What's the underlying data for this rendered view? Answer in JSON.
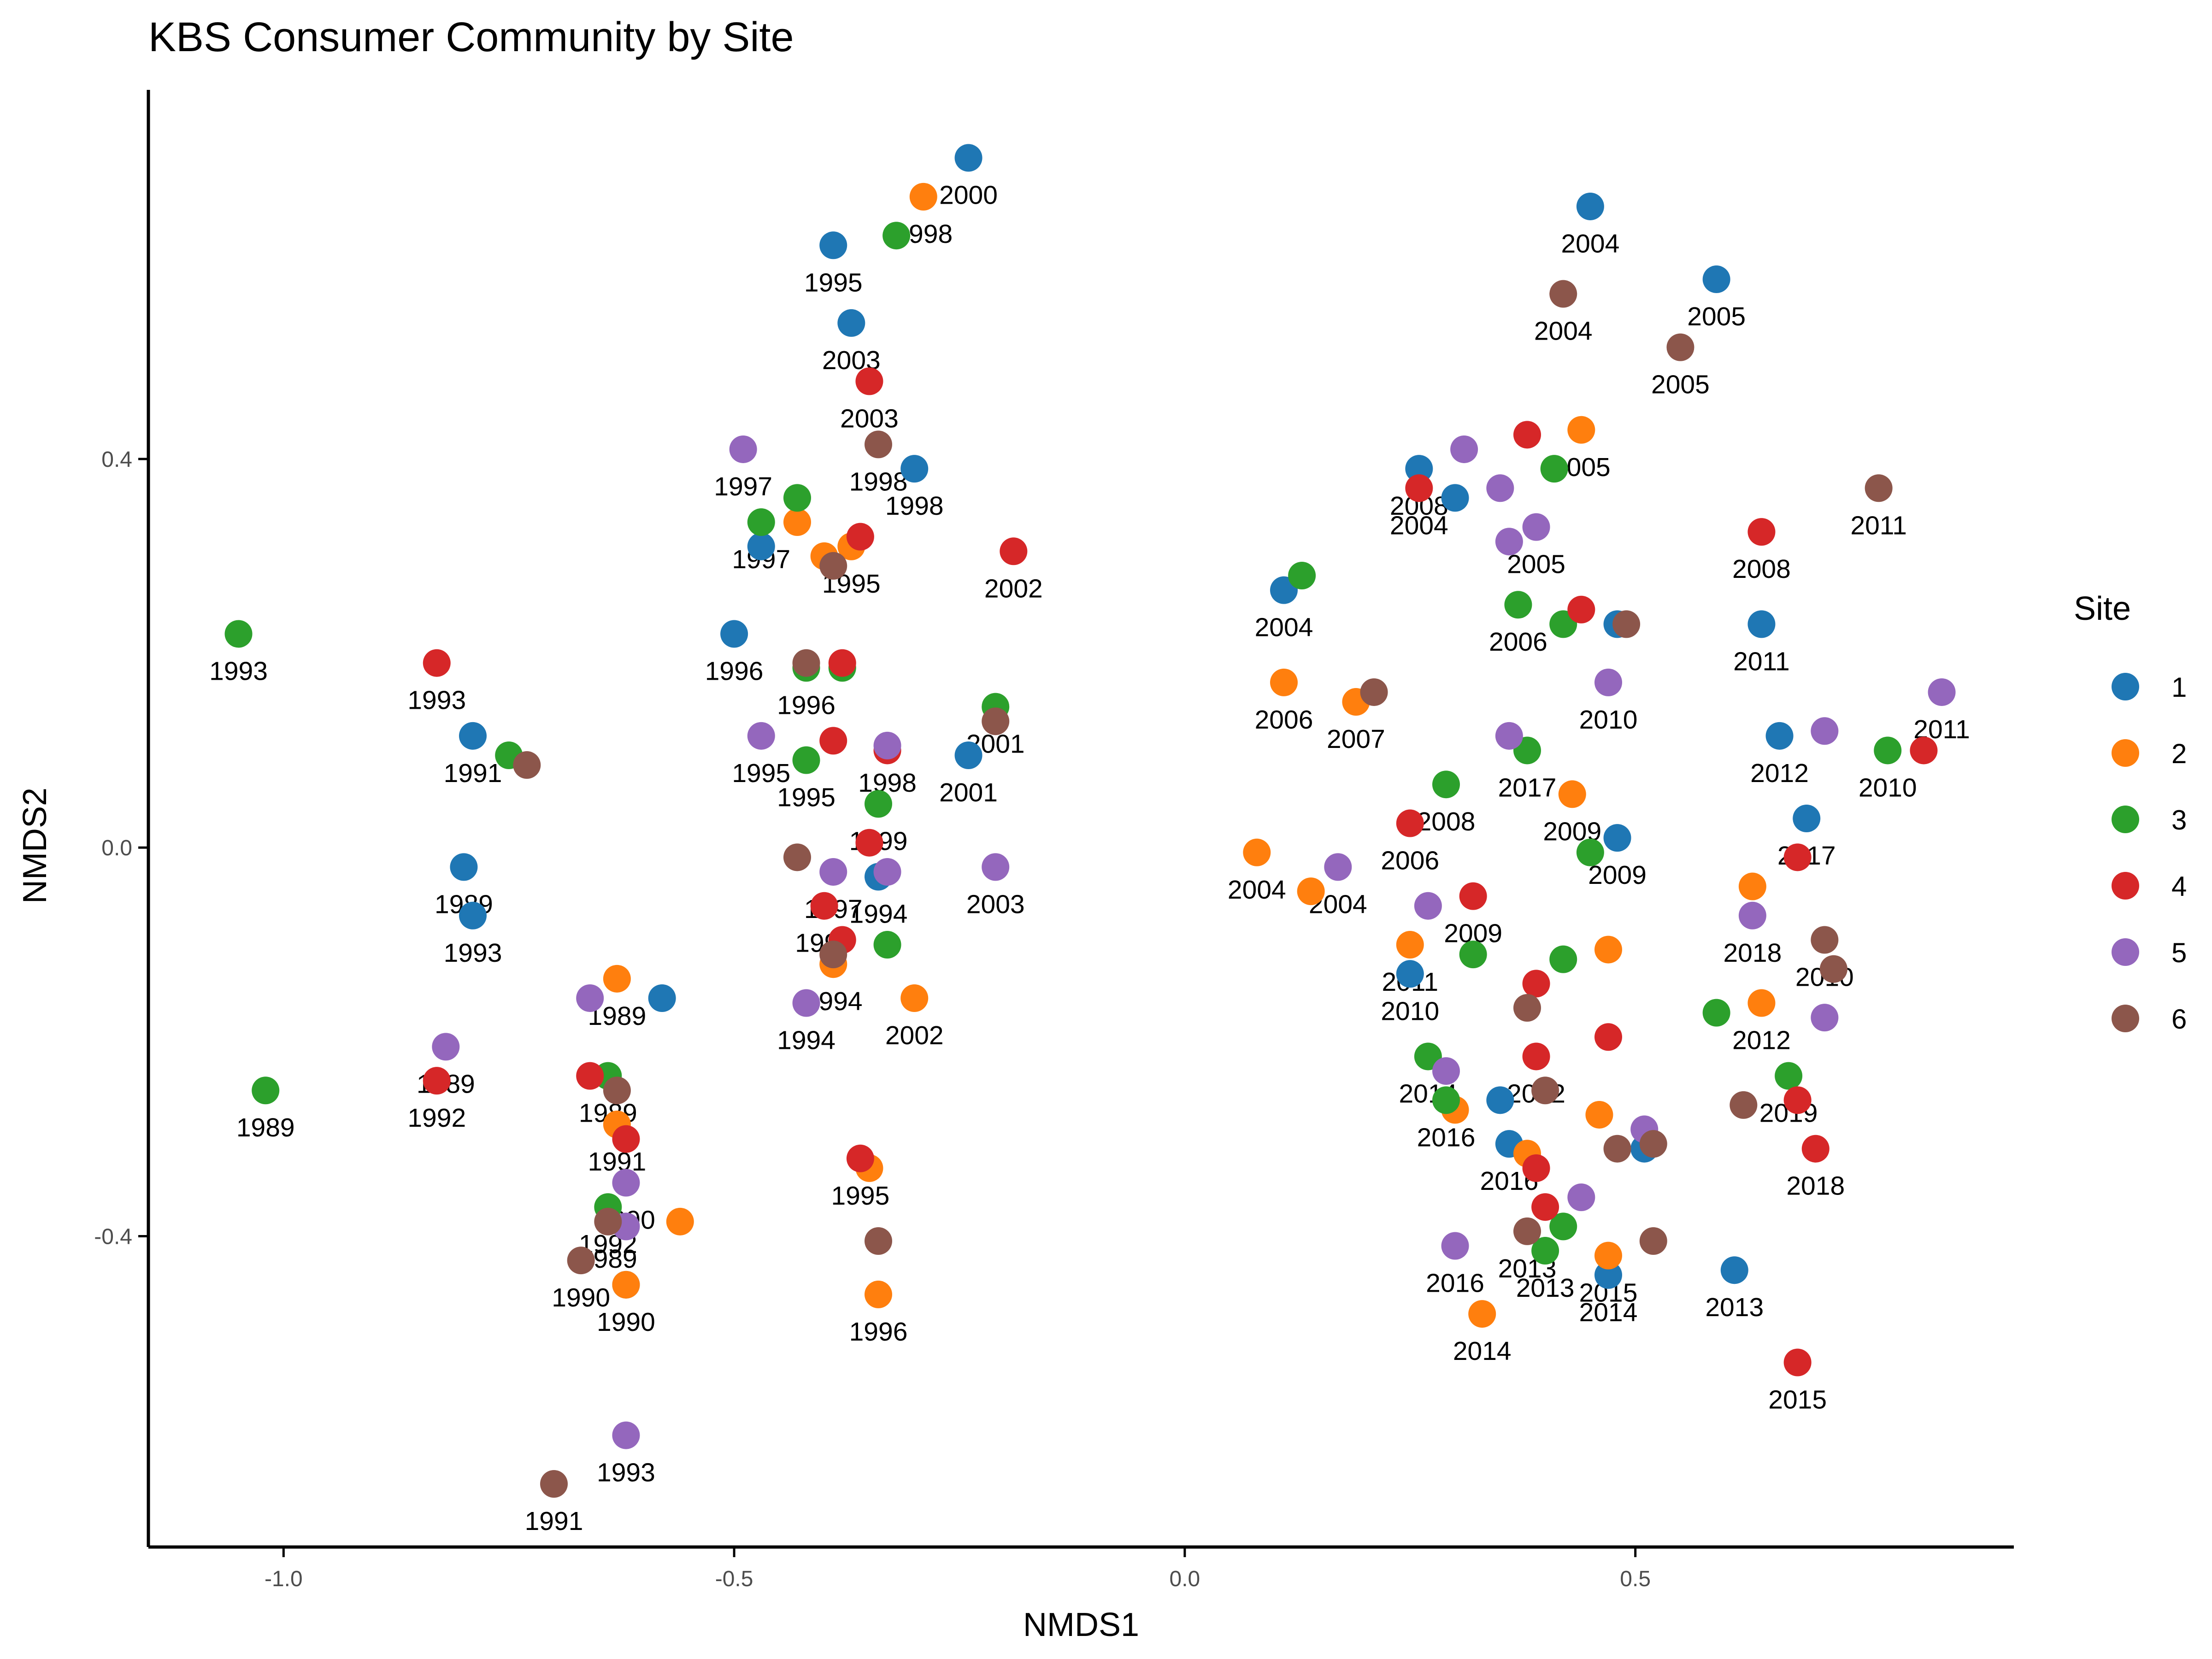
{
  "chart_data": {
    "type": "scatter",
    "title": "KBS Consumer Community by Site",
    "xlabel": "NMDS1",
    "ylabel": "NMDS2",
    "xlim": [
      -1.15,
      0.92
    ],
    "ylim": [
      -0.72,
      0.78
    ],
    "xticks": [
      -1.0,
      -0.5,
      0.0,
      0.5
    ],
    "xtick_labels": [
      "-1.0",
      "-0.5",
      "0.0",
      "0.5"
    ],
    "yticks": [
      -0.4,
      0.0,
      0.4
    ],
    "ytick_labels": [
      "-0.4",
      "0.0",
      "0.4"
    ],
    "grid": false,
    "legend": {
      "title": "Site",
      "placement": "right",
      "entries": [
        {
          "label": "1",
          "color": "#1f77b4"
        },
        {
          "label": "2",
          "color": "#ff7f0e"
        },
        {
          "label": "3",
          "color": "#2ca02c"
        },
        {
          "label": "4",
          "color": "#d62728"
        },
        {
          "label": "5",
          "color": "#9467bd"
        },
        {
          "label": "6",
          "color": "#8c564b"
        }
      ]
    },
    "series": [
      {
        "name": "1",
        "color": "#1f77b4",
        "points": [
          {
            "x": -0.24,
            "y": 0.71,
            "label": "2000"
          },
          {
            "x": -0.39,
            "y": 0.62,
            "label": "1995"
          },
          {
            "x": -0.37,
            "y": 0.54,
            "label": "2003"
          },
          {
            "x": -0.3,
            "y": 0.39,
            "label": "1998"
          },
          {
            "x": -0.47,
            "y": 0.31,
            "label": ""
          },
          {
            "x": -0.5,
            "y": 0.22,
            "label": "1996"
          },
          {
            "x": -0.24,
            "y": 0.095,
            "label": "2001"
          },
          {
            "x": -0.79,
            "y": 0.115,
            "label": "1991"
          },
          {
            "x": -0.8,
            "y": -0.02,
            "label": "1989"
          },
          {
            "x": -0.79,
            "y": -0.07,
            "label": "1993"
          },
          {
            "x": -0.58,
            "y": -0.155,
            "label": ""
          },
          {
            "x": -0.34,
            "y": -0.03,
            "label": "1994"
          },
          {
            "x": -0.62,
            "y": -0.45,
            "label": "1990"
          },
          {
            "x": 0.45,
            "y": 0.66,
            "label": "2004"
          },
          {
            "x": 0.59,
            "y": 0.585,
            "label": "2005"
          },
          {
            "x": 0.26,
            "y": 0.39,
            "label": "2008"
          },
          {
            "x": 0.3,
            "y": 0.36,
            "label": ""
          },
          {
            "x": 0.11,
            "y": 0.265,
            "label": "2004"
          },
          {
            "x": 0.48,
            "y": 0.23,
            "label": ""
          },
          {
            "x": 0.64,
            "y": 0.23,
            "label": "2011"
          },
          {
            "x": 0.66,
            "y": 0.115,
            "label": "2012"
          },
          {
            "x": 0.69,
            "y": 0.03,
            "label": "2017"
          },
          {
            "x": 0.48,
            "y": 0.01,
            "label": "2009"
          },
          {
            "x": 0.25,
            "y": -0.13,
            "label": "2010"
          },
          {
            "x": 0.35,
            "y": -0.26,
            "label": ""
          },
          {
            "x": 0.36,
            "y": -0.305,
            "label": "2016"
          },
          {
            "x": 0.51,
            "y": -0.31,
            "label": ""
          },
          {
            "x": 0.47,
            "y": -0.44,
            "label": "2014"
          },
          {
            "x": 0.61,
            "y": -0.435,
            "label": "2013"
          }
        ]
      },
      {
        "name": "2",
        "color": "#ff7f0e",
        "points": [
          {
            "x": -0.29,
            "y": 0.67,
            "label": "1998"
          },
          {
            "x": -0.43,
            "y": 0.335,
            "label": ""
          },
          {
            "x": -0.37,
            "y": 0.31,
            "label": "1995"
          },
          {
            "x": -0.4,
            "y": 0.3,
            "label": ""
          },
          {
            "x": -0.63,
            "y": -0.135,
            "label": "1989"
          },
          {
            "x": -0.63,
            "y": -0.285,
            "label": "1991"
          },
          {
            "x": -0.39,
            "y": -0.12,
            "label": "1994"
          },
          {
            "x": -0.3,
            "y": -0.155,
            "label": "2002"
          },
          {
            "x": -0.35,
            "y": -0.33,
            "label": ""
          },
          {
            "x": -0.56,
            "y": -0.385,
            "label": ""
          },
          {
            "x": -0.62,
            "y": -0.45,
            "label": ""
          },
          {
            "x": -0.34,
            "y": -0.46,
            "label": "1996"
          },
          {
            "x": 0.44,
            "y": 0.43,
            "label": "2005"
          },
          {
            "x": 0.11,
            "y": 0.17,
            "label": "2006"
          },
          {
            "x": 0.19,
            "y": 0.15,
            "label": "2007"
          },
          {
            "x": 0.43,
            "y": 0.055,
            "label": "2009"
          },
          {
            "x": 0.08,
            "y": -0.005,
            "label": "2004"
          },
          {
            "x": 0.14,
            "y": -0.045,
            "label": ""
          },
          {
            "x": 0.25,
            "y": -0.1,
            "label": "2011"
          },
          {
            "x": 0.47,
            "y": -0.105,
            "label": ""
          },
          {
            "x": 0.63,
            "y": -0.04,
            "label": ""
          },
          {
            "x": 0.64,
            "y": -0.16,
            "label": "2012"
          },
          {
            "x": 0.3,
            "y": -0.27,
            "label": ""
          },
          {
            "x": 0.38,
            "y": -0.315,
            "label": ""
          },
          {
            "x": 0.46,
            "y": -0.275,
            "label": ""
          },
          {
            "x": 0.47,
            "y": -0.42,
            "label": "2015"
          },
          {
            "x": 0.33,
            "y": -0.48,
            "label": "2014"
          }
        ]
      },
      {
        "name": "3",
        "color": "#2ca02c",
        "points": [
          {
            "x": -0.32,
            "y": 0.63,
            "label": ""
          },
          {
            "x": -0.43,
            "y": 0.36,
            "label": ""
          },
          {
            "x": -0.47,
            "y": 0.335,
            "label": "1997"
          },
          {
            "x": -0.42,
            "y": 0.185,
            "label": "1996"
          },
          {
            "x": -0.38,
            "y": 0.185,
            "label": ""
          },
          {
            "x": -0.21,
            "y": 0.145,
            "label": "2001"
          },
          {
            "x": -0.42,
            "y": 0.09,
            "label": "1995"
          },
          {
            "x": -0.34,
            "y": 0.045,
            "label": "1999"
          },
          {
            "x": -0.33,
            "y": -0.1,
            "label": ""
          },
          {
            "x": -1.05,
            "y": 0.22,
            "label": "1993"
          },
          {
            "x": -0.75,
            "y": 0.095,
            "label": ""
          },
          {
            "x": -1.02,
            "y": -0.25,
            "label": "1989"
          },
          {
            "x": -0.64,
            "y": -0.235,
            "label": "1989"
          },
          {
            "x": -0.64,
            "y": -0.37,
            "label": "1992"
          },
          {
            "x": 0.13,
            "y": 0.28,
            "label": ""
          },
          {
            "x": 0.41,
            "y": 0.39,
            "label": ""
          },
          {
            "x": 0.37,
            "y": 0.25,
            "label": "2006"
          },
          {
            "x": 0.42,
            "y": 0.23,
            "label": ""
          },
          {
            "x": 0.29,
            "y": 0.065,
            "label": "2008"
          },
          {
            "x": 0.38,
            "y": 0.1,
            "label": "2017"
          },
          {
            "x": 0.45,
            "y": -0.005,
            "label": ""
          },
          {
            "x": 0.78,
            "y": 0.1,
            "label": "2010"
          },
          {
            "x": 0.32,
            "y": -0.11,
            "label": ""
          },
          {
            "x": 0.42,
            "y": -0.115,
            "label": ""
          },
          {
            "x": 0.27,
            "y": -0.215,
            "label": "2014"
          },
          {
            "x": 0.29,
            "y": -0.26,
            "label": "2016"
          },
          {
            "x": 0.59,
            "y": -0.17,
            "label": ""
          },
          {
            "x": 0.67,
            "y": -0.235,
            "label": "2019"
          },
          {
            "x": 0.42,
            "y": -0.39,
            "label": ""
          },
          {
            "x": 0.4,
            "y": -0.415,
            "label": "2013"
          }
        ]
      },
      {
        "name": "4",
        "color": "#d62728",
        "points": [
          {
            "x": -0.35,
            "y": 0.48,
            "label": "2003"
          },
          {
            "x": -0.36,
            "y": 0.32,
            "label": ""
          },
          {
            "x": -0.19,
            "y": 0.305,
            "label": "2002"
          },
          {
            "x": -0.38,
            "y": 0.19,
            "label": ""
          },
          {
            "x": -0.39,
            "y": 0.11,
            "label": ""
          },
          {
            "x": -0.33,
            "y": 0.1,
            "label": ""
          },
          {
            "x": -0.35,
            "y": 0.005,
            "label": ""
          },
          {
            "x": -0.4,
            "y": -0.06,
            "label": "1996"
          },
          {
            "x": -0.38,
            "y": -0.095,
            "label": ""
          },
          {
            "x": -0.83,
            "y": 0.19,
            "label": "1993"
          },
          {
            "x": -0.83,
            "y": -0.24,
            "label": "1992"
          },
          {
            "x": -0.66,
            "y": -0.235,
            "label": ""
          },
          {
            "x": -0.62,
            "y": -0.3,
            "label": ""
          },
          {
            "x": -0.36,
            "y": -0.32,
            "label": "1995"
          },
          {
            "x": 0.38,
            "y": 0.425,
            "label": ""
          },
          {
            "x": 0.26,
            "y": 0.37,
            "label": "2004"
          },
          {
            "x": 0.44,
            "y": 0.245,
            "label": ""
          },
          {
            "x": 0.64,
            "y": 0.325,
            "label": "2008"
          },
          {
            "x": 0.82,
            "y": 0.1,
            "label": ""
          },
          {
            "x": 0.25,
            "y": 0.025,
            "label": "2006"
          },
          {
            "x": 0.32,
            "y": -0.05,
            "label": "2009"
          },
          {
            "x": 0.68,
            "y": -0.01,
            "label": ""
          },
          {
            "x": 0.39,
            "y": -0.14,
            "label": ""
          },
          {
            "x": 0.47,
            "y": -0.195,
            "label": ""
          },
          {
            "x": 0.39,
            "y": -0.215,
            "label": "2012"
          },
          {
            "x": 0.68,
            "y": -0.26,
            "label": ""
          },
          {
            "x": 0.7,
            "y": -0.31,
            "label": "2018"
          },
          {
            "x": 0.39,
            "y": -0.33,
            "label": ""
          },
          {
            "x": 0.4,
            "y": -0.37,
            "label": ""
          },
          {
            "x": 0.68,
            "y": -0.53,
            "label": "2015"
          }
        ]
      },
      {
        "name": "5",
        "color": "#9467bd",
        "points": [
          {
            "x": -0.49,
            "y": 0.41,
            "label": "1997"
          },
          {
            "x": -0.47,
            "y": 0.115,
            "label": "1995"
          },
          {
            "x": -0.33,
            "y": 0.105,
            "label": "1998"
          },
          {
            "x": -0.39,
            "y": -0.025,
            "label": "1997"
          },
          {
            "x": -0.33,
            "y": -0.025,
            "label": ""
          },
          {
            "x": -0.21,
            "y": -0.02,
            "label": "2003"
          },
          {
            "x": -0.42,
            "y": -0.16,
            "label": "1994"
          },
          {
            "x": -0.66,
            "y": -0.155,
            "label": ""
          },
          {
            "x": -0.82,
            "y": -0.205,
            "label": "1989"
          },
          {
            "x": -0.62,
            "y": -0.345,
            "label": "1990"
          },
          {
            "x": -0.62,
            "y": -0.39,
            "label": ""
          },
          {
            "x": -0.62,
            "y": -0.605,
            "label": "1993"
          },
          {
            "x": 0.31,
            "y": 0.41,
            "label": ""
          },
          {
            "x": 0.35,
            "y": 0.37,
            "label": ""
          },
          {
            "x": 0.39,
            "y": 0.33,
            "label": "2005"
          },
          {
            "x": 0.36,
            "y": 0.315,
            "label": ""
          },
          {
            "x": 0.47,
            "y": 0.17,
            "label": "2010"
          },
          {
            "x": 0.36,
            "y": 0.115,
            "label": ""
          },
          {
            "x": 0.84,
            "y": 0.16,
            "label": "2011"
          },
          {
            "x": 0.71,
            "y": 0.12,
            "label": ""
          },
          {
            "x": 0.17,
            "y": -0.02,
            "label": "2004"
          },
          {
            "x": 0.27,
            "y": -0.06,
            "label": ""
          },
          {
            "x": 0.63,
            "y": -0.07,
            "label": "2018"
          },
          {
            "x": 0.71,
            "y": -0.175,
            "label": ""
          },
          {
            "x": 0.29,
            "y": -0.23,
            "label": ""
          },
          {
            "x": 0.51,
            "y": -0.29,
            "label": ""
          },
          {
            "x": 0.44,
            "y": -0.36,
            "label": ""
          },
          {
            "x": 0.3,
            "y": -0.41,
            "label": "2016"
          }
        ]
      },
      {
        "name": "6",
        "color": "#8c564b",
        "points": [
          {
            "x": -0.34,
            "y": 0.415,
            "label": "1998"
          },
          {
            "x": -0.39,
            "y": 0.29,
            "label": ""
          },
          {
            "x": -0.42,
            "y": 0.19,
            "label": ""
          },
          {
            "x": -0.21,
            "y": 0.13,
            "label": ""
          },
          {
            "x": -0.43,
            "y": -0.01,
            "label": ""
          },
          {
            "x": -0.39,
            "y": -0.11,
            "label": ""
          },
          {
            "x": -0.73,
            "y": 0.085,
            "label": ""
          },
          {
            "x": -0.63,
            "y": -0.25,
            "label": ""
          },
          {
            "x": -0.64,
            "y": -0.385,
            "label": "1989"
          },
          {
            "x": -0.67,
            "y": -0.425,
            "label": "1990"
          },
          {
            "x": -0.34,
            "y": -0.405,
            "label": ""
          },
          {
            "x": -0.7,
            "y": -0.655,
            "label": "1991"
          },
          {
            "x": 0.42,
            "y": 0.57,
            "label": "2004"
          },
          {
            "x": 0.55,
            "y": 0.515,
            "label": "2005"
          },
          {
            "x": 0.77,
            "y": 0.37,
            "label": "2011"
          },
          {
            "x": 0.49,
            "y": 0.23,
            "label": ""
          },
          {
            "x": 0.21,
            "y": 0.16,
            "label": ""
          },
          {
            "x": 0.71,
            "y": -0.095,
            "label": "2010"
          },
          {
            "x": 0.72,
            "y": -0.125,
            "label": ""
          },
          {
            "x": 0.38,
            "y": -0.165,
            "label": ""
          },
          {
            "x": 0.4,
            "y": -0.25,
            "label": ""
          },
          {
            "x": 0.62,
            "y": -0.265,
            "label": ""
          },
          {
            "x": 0.48,
            "y": -0.31,
            "label": ""
          },
          {
            "x": 0.52,
            "y": -0.305,
            "label": ""
          },
          {
            "x": 0.38,
            "y": -0.395,
            "label": "2013"
          },
          {
            "x": 0.52,
            "y": -0.405,
            "label": ""
          }
        ]
      }
    ]
  }
}
